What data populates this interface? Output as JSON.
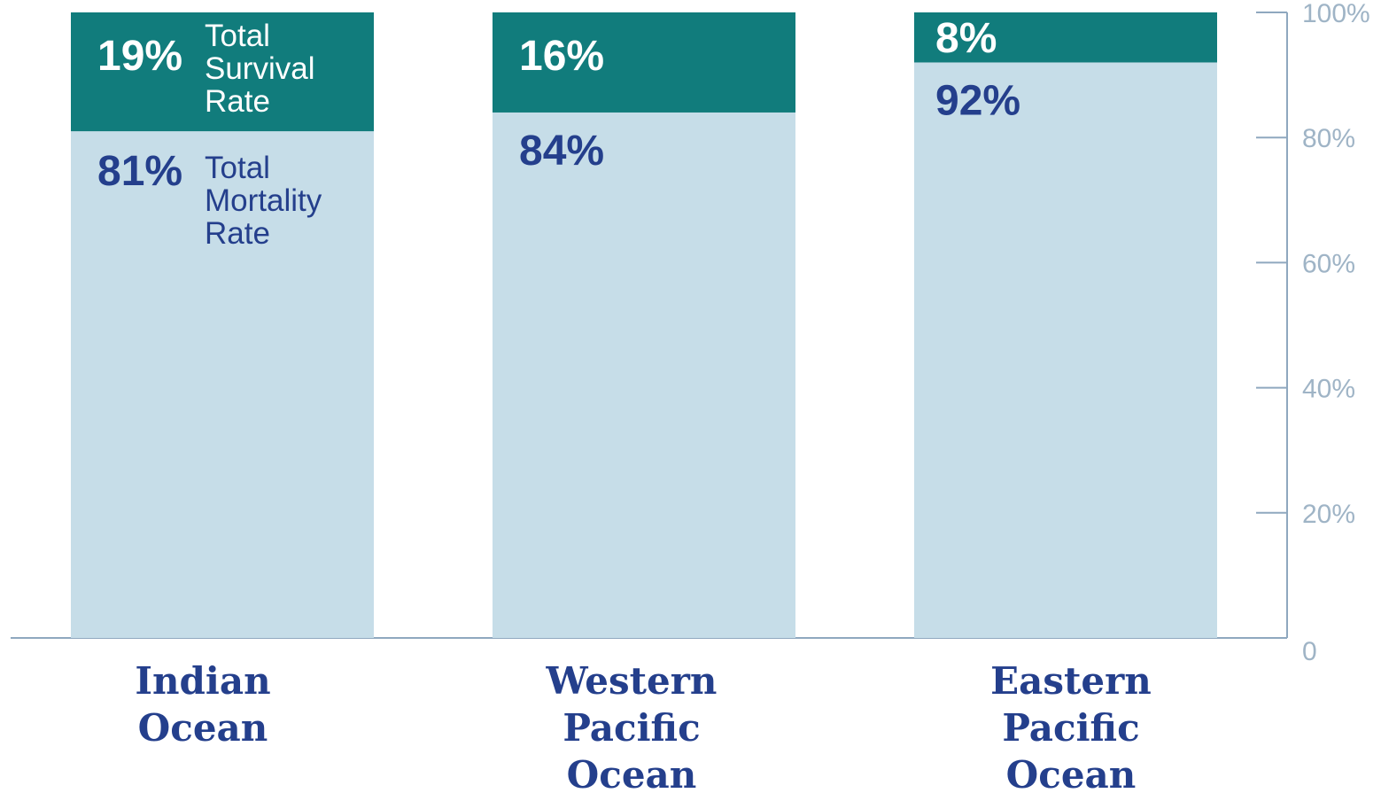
{
  "chart_data": {
    "type": "stacked_bar",
    "categories": [
      "Indian Ocean",
      "Western Pacific Ocean",
      "Eastern Pacific Ocean"
    ],
    "series": [
      {
        "name": "Total Mortality Rate",
        "color": "#c6dde8",
        "text_color": "#243f8c",
        "values": [
          81,
          84,
          92
        ],
        "value_labels": [
          "81%",
          "84%",
          "92%"
        ]
      },
      {
        "name": "Total Survival Rate",
        "color": "#117c7c",
        "text_color": "#ffffff",
        "values": [
          19,
          16,
          8
        ],
        "value_labels": [
          "19%",
          "16%",
          "8%"
        ]
      }
    ],
    "ylim": [
      0,
      100
    ],
    "yticks": [
      0,
      {
        "value": 20,
        "label": "20%"
      },
      {
        "value": 40,
        "label": "40%"
      },
      {
        "value": 60,
        "label": "60%"
      },
      {
        "value": 80,
        "label": "80%"
      },
      {
        "value": 100,
        "label": "100%"
      }
    ],
    "axis_side": "right"
  }
}
